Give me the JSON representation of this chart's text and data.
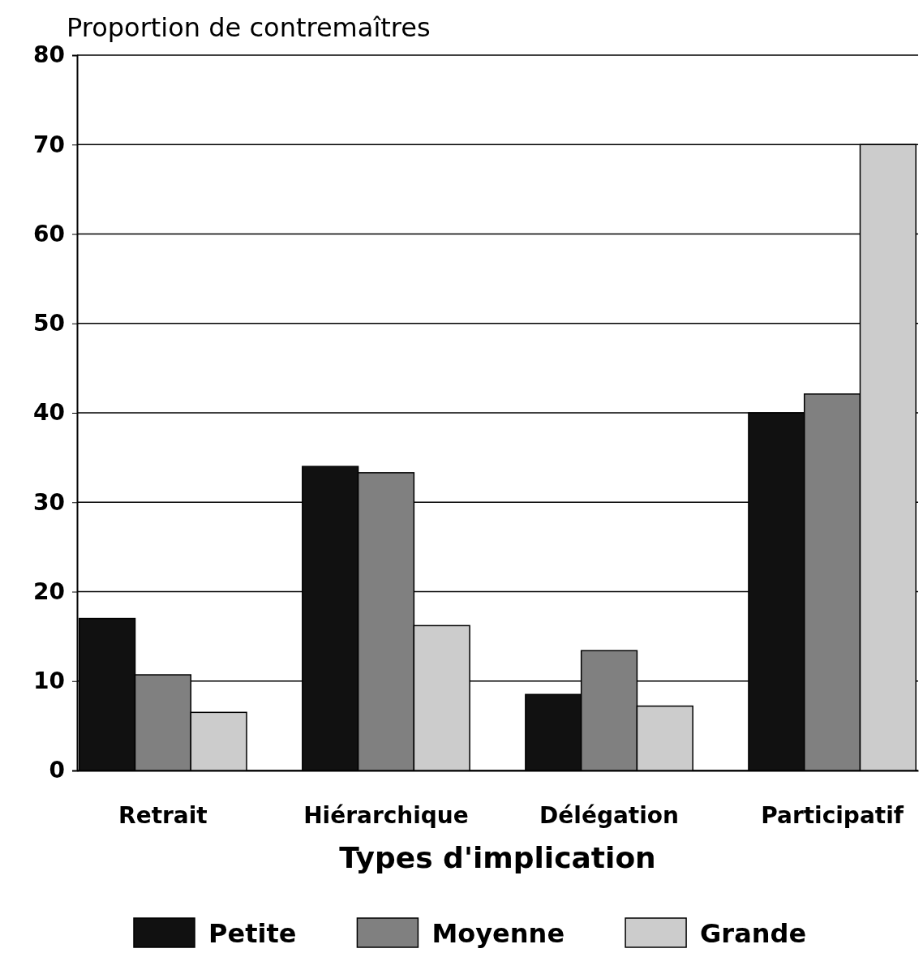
{
  "chart_data": {
    "type": "bar",
    "ylabel": "Proportion de contremaîtres",
    "xlabel": "Types d'implication",
    "categories": [
      "Retrait",
      "Hiérarchique",
      "Délégation",
      "Participatif"
    ],
    "series": [
      {
        "name": "Petite",
        "color": "#111111",
        "values": [
          17,
          34,
          8.5,
          40
        ]
      },
      {
        "name": "Moyenne",
        "color": "#808080",
        "values": [
          10.7,
          33.3,
          13.4,
          42.1
        ]
      },
      {
        "name": "Grande",
        "color": "#cccccc",
        "values": [
          6.5,
          16.2,
          7.2,
          70
        ]
      }
    ],
    "ylim": [
      0,
      80
    ],
    "yticks": [
      0,
      10,
      20,
      30,
      40,
      50,
      60,
      70,
      80
    ],
    "grid": "y",
    "legend": "bottom"
  }
}
